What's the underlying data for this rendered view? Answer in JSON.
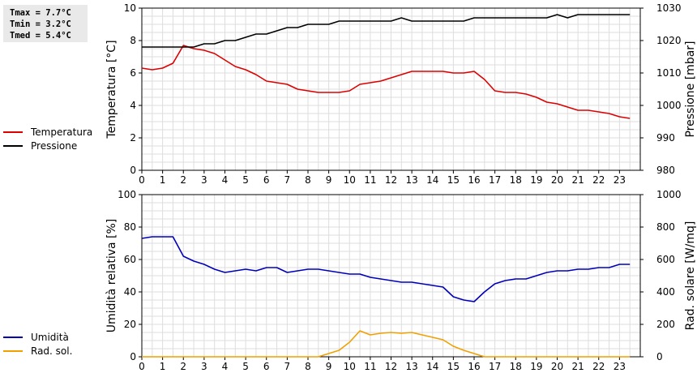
{
  "stats": {
    "tmax": "Tmax =  7.7°C",
    "tmin": "Tmin =  3.2°C",
    "tmed": "Tmed =  5.4°C"
  },
  "legend_top": [
    {
      "label": "Temperatura",
      "color": "#dd0000"
    },
    {
      "label": "Pressione",
      "color": "#000000"
    }
  ],
  "legend_bottom": [
    {
      "label": "Umidità",
      "color": "#0000bb"
    },
    {
      "label": "Rad. sol.",
      "color": "#f0a000"
    }
  ],
  "chart_data": [
    {
      "type": "line",
      "x": [
        0,
        0.5,
        1,
        1.5,
        2,
        2.5,
        3,
        3.5,
        4,
        4.5,
        5,
        5.5,
        6,
        6.5,
        7,
        7.5,
        8,
        8.5,
        9,
        9.5,
        10,
        10.5,
        11,
        11.5,
        12,
        12.5,
        13,
        13.5,
        14,
        14.5,
        15,
        15.5,
        16,
        16.5,
        17,
        17.5,
        18,
        18.5,
        19,
        19.5,
        20,
        20.5,
        21,
        21.5,
        22,
        22.5,
        23,
        23.5
      ],
      "xlim": [
        0,
        24
      ],
      "xticks": [
        "0",
        "1",
        "2",
        "3",
        "4",
        "5",
        "6",
        "7",
        "8",
        "9",
        "10",
        "11",
        "12",
        "13",
        "14",
        "15",
        "16",
        "17",
        "18",
        "19",
        "20",
        "21",
        "22",
        "23"
      ],
      "ylabel": "Temperatura [°C]",
      "ylim": [
        0,
        10
      ],
      "yticks": [
        0,
        2,
        4,
        6,
        8,
        10
      ],
      "y2label": "Pressione [mbar]",
      "y2lim": [
        980,
        1030
      ],
      "y2ticks": [
        980,
        990,
        1000,
        1010,
        1020,
        1030
      ],
      "grid": true,
      "series": [
        {
          "name": "Temperatura",
          "axis": "left",
          "color": "#dd0000",
          "values": [
            6.3,
            6.2,
            6.3,
            6.6,
            7.7,
            7.5,
            7.4,
            7.2,
            6.8,
            6.4,
            6.2,
            5.9,
            5.5,
            5.4,
            5.3,
            5.0,
            4.9,
            4.8,
            4.8,
            4.8,
            4.9,
            5.3,
            5.4,
            5.5,
            5.7,
            5.9,
            6.1,
            6.1,
            6.1,
            6.1,
            6.0,
            6.0,
            6.1,
            5.6,
            4.9,
            4.8,
            4.8,
            4.7,
            4.5,
            4.2,
            4.1,
            3.9,
            3.7,
            3.7,
            3.6,
            3.5,
            3.3,
            3.2
          ]
        },
        {
          "name": "Pressione",
          "axis": "right",
          "color": "#000000",
          "values": [
            1018,
            1018,
            1018,
            1018,
            1018,
            1018,
            1019,
            1019,
            1020,
            1020,
            1021,
            1022,
            1022,
            1023,
            1024,
            1024,
            1025,
            1025,
            1025,
            1026,
            1026,
            1026,
            1026,
            1026,
            1026,
            1027,
            1026,
            1026,
            1026,
            1026,
            1026,
            1026,
            1027,
            1027,
            1027,
            1027,
            1027,
            1027,
            1027,
            1027,
            1028,
            1027,
            1028,
            1028,
            1028,
            1028,
            1028,
            1028
          ]
        }
      ]
    },
    {
      "type": "line",
      "x": [
        0,
        0.5,
        1,
        1.5,
        2,
        2.5,
        3,
        3.5,
        4,
        4.5,
        5,
        5.5,
        6,
        6.5,
        7,
        7.5,
        8,
        8.5,
        9,
        9.5,
        10,
        10.5,
        11,
        11.5,
        12,
        12.5,
        13,
        13.5,
        14,
        14.5,
        15,
        15.5,
        16,
        16.5,
        17,
        17.5,
        18,
        18.5,
        19,
        19.5,
        20,
        20.5,
        21,
        21.5,
        22,
        22.5,
        23,
        23.5
      ],
      "xlim": [
        0,
        24
      ],
      "xticks": [
        "0",
        "1",
        "2",
        "3",
        "4",
        "5",
        "6",
        "7",
        "8",
        "9",
        "10",
        "11",
        "12",
        "13",
        "14",
        "15",
        "16",
        "17",
        "18",
        "19",
        "20",
        "21",
        "22",
        "23"
      ],
      "ylabel": "Umidità relativa [%]",
      "ylim": [
        0,
        100
      ],
      "yticks": [
        0,
        20,
        40,
        60,
        80,
        100
      ],
      "y2label": "Rad. solare [W/mq]",
      "y2lim": [
        0,
        1000
      ],
      "y2ticks": [
        0,
        200,
        400,
        600,
        800,
        1000
      ],
      "grid": true,
      "series": [
        {
          "name": "Umidità",
          "axis": "left",
          "color": "#0000bb",
          "values": [
            73,
            74,
            74,
            74,
            62,
            59,
            57,
            54,
            52,
            53,
            54,
            53,
            55,
            55,
            52,
            53,
            54,
            54,
            53,
            52,
            51,
            51,
            49,
            48,
            47,
            46,
            46,
            45,
            44,
            43,
            37,
            35,
            34,
            40,
            45,
            47,
            48,
            48,
            50,
            52,
            53,
            53,
            54,
            54,
            55,
            55,
            57,
            57
          ]
        },
        {
          "name": "Rad. sol.",
          "axis": "right",
          "color": "#f0a000",
          "values": [
            0,
            0,
            0,
            0,
            0,
            0,
            0,
            0,
            0,
            0,
            0,
            0,
            0,
            0,
            0,
            0,
            0,
            0,
            20,
            40,
            90,
            160,
            135,
            145,
            150,
            145,
            150,
            135,
            120,
            105,
            65,
            40,
            20,
            0,
            0,
            0,
            0,
            0,
            0,
            0,
            0,
            0,
            0,
            0,
            0,
            0,
            0,
            0
          ]
        }
      ]
    }
  ]
}
